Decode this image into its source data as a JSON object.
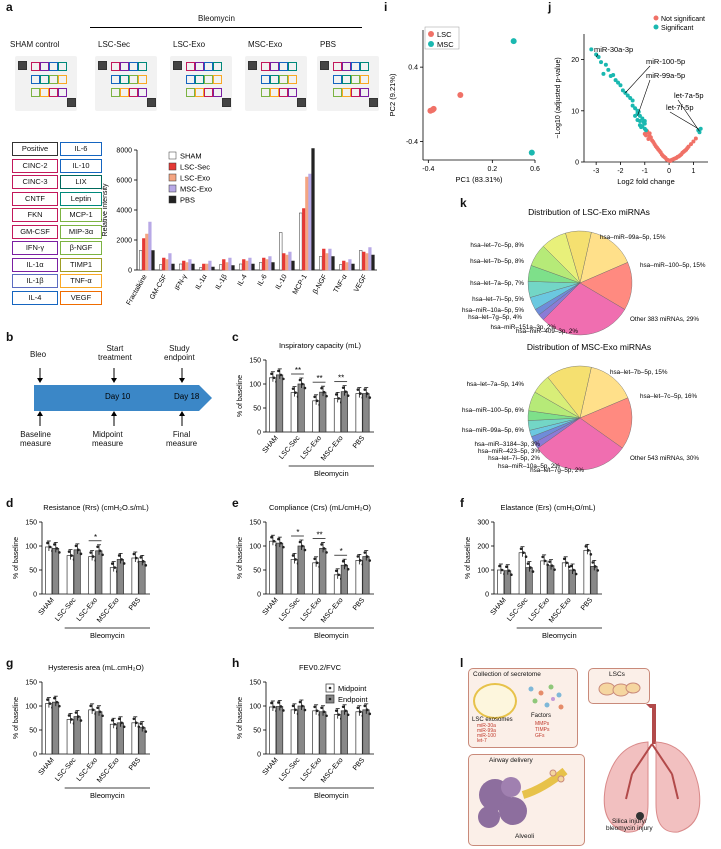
{
  "panel_letters": {
    "a": "a",
    "b": "b",
    "c": "c",
    "d": "d",
    "e": "e",
    "f": "f",
    "g": "g",
    "h": "h",
    "i": "i",
    "j": "j",
    "k": "k",
    "l": "l"
  },
  "panel_a": {
    "bleomycin_label": "Bleomycin",
    "conditions": [
      "SHAM control",
      "LSC-Sec",
      "LSC-Exo",
      "MSC-Exo",
      "PBS"
    ],
    "key_left": [
      "Positive",
      "CINC-2",
      "CINC-3",
      "CNTF",
      "FKN",
      "GM-CSF",
      "IFN-γ",
      "IL-1α",
      "IL-1β",
      "IL-4"
    ],
    "key_right": [
      "IL-6",
      "IL-10",
      "LIX",
      "Leptin",
      "MCP-1",
      "MIP-3α",
      "β-NGF",
      "TIMP1",
      "TNF-α",
      "VEGF"
    ],
    "key_left_colors": [
      "#333333",
      "#c2185b",
      "#c2185b",
      "#c2185b",
      "#c2185b",
      "#c2185b",
      "#7b1fa2",
      "#7b1fa2",
      "#5c6bc0",
      "#1565c0"
    ],
    "key_right_colors": [
      "#1565c0",
      "#1565c0",
      "#00695c",
      "#00897b",
      "#7cb342",
      "#7cb342",
      "#7cb342",
      "#9e9d24",
      "#f9a825",
      "#ef6c00"
    ],
    "chart_data": {
      "type": "bar",
      "ylabel": "Relative intensity",
      "ylim": [
        0,
        8000
      ],
      "yticks": [
        0,
        2000,
        4000,
        6000,
        8000
      ],
      "categories": [
        "Fractalkine",
        "GM-CSF",
        "IFN-γ",
        "IL-1α",
        "IL-1β",
        "IL-4",
        "IL-6",
        "IL-10",
        "MCP-1",
        "β-NGF",
        "TNF-α",
        "VEGF"
      ],
      "series": [
        {
          "name": "SHAM",
          "color": "#ffffff",
          "values": [
            1300,
            350,
            400,
            150,
            350,
            400,
            500,
            2500,
            3800,
            900,
            350,
            1300
          ]
        },
        {
          "name": "LSC-Sec",
          "color": "#e53935",
          "values": [
            2100,
            800,
            600,
            400,
            700,
            700,
            800,
            1100,
            4100,
            1400,
            600,
            1200
          ]
        },
        {
          "name": "LSC-Exo",
          "color": "#f4a582",
          "values": [
            2400,
            700,
            500,
            400,
            500,
            600,
            700,
            1000,
            6200,
            1100,
            500,
            1100
          ]
        },
        {
          "name": "MSC-Exo",
          "color": "#b8a9e6",
          "values": [
            3200,
            1100,
            700,
            600,
            800,
            800,
            900,
            1200,
            6400,
            1400,
            700,
            1500
          ]
        },
        {
          "name": "PBS",
          "color": "#222222",
          "values": [
            1300,
            400,
            400,
            200,
            300,
            400,
            500,
            600,
            8100,
            900,
            400,
            1000
          ]
        }
      ]
    }
  },
  "panel_b": {
    "top_labels": [
      "Bleo",
      "Start\ntreatment",
      "Study\nendpoint"
    ],
    "bottom_labels": [
      "Baseline\nmeasure",
      "Midpoint\nmeasure",
      "Final\nmeasure"
    ],
    "day10": "Day 10",
    "day18": "Day 18",
    "bleomycin_label": "Bleomycin"
  },
  "panel_c": {
    "chart_data": {
      "type": "bar",
      "title": "Inspiratory capacity (mL)",
      "ylabel": "% of baseline",
      "ylim": [
        0,
        150
      ],
      "yticks": [
        0,
        50,
        100,
        150
      ],
      "categories": [
        "SHAM",
        "LSC-Sec",
        "LSC-Exo",
        "MSC-Exo",
        "PBS"
      ],
      "series": [
        {
          "name": "Midpoint",
          "values": [
            113,
            82,
            65,
            70,
            80
          ]
        },
        {
          "name": "Endpoint",
          "values": [
            119,
            100,
            83,
            84,
            80
          ]
        }
      ],
      "significance": [
        "",
        "**",
        "**",
        "**",
        ""
      ],
      "group_label": "Bleomycin"
    }
  },
  "panel_d": {
    "chart_data": {
      "type": "bar",
      "title": "Resistance (Rrs) (cmH₂O.s/mL)",
      "ylabel": "% of baseline",
      "ylim": [
        0,
        150
      ],
      "yticks": [
        0,
        50,
        100,
        150
      ],
      "categories": [
        "SHAM",
        "LSC-Sec",
        "LSC-Exo",
        "MSC-Exo",
        "PBS"
      ],
      "series": [
        {
          "name": "Midpoint",
          "values": [
            98,
            80,
            78,
            55,
            75
          ]
        },
        {
          "name": "Endpoint",
          "values": [
            95,
            92,
            90,
            72,
            68
          ]
        }
      ],
      "significance": [
        "",
        "",
        "*",
        "",
        ""
      ],
      "group_label": "Bleomycin"
    }
  },
  "panel_e": {
    "chart_data": {
      "type": "bar",
      "title": "Compliance (Crs) (mL/cmH₂O)",
      "ylabel": "% of baseline",
      "ylim": [
        0,
        150
      ],
      "yticks": [
        0,
        50,
        100,
        150
      ],
      "categories": [
        "SHAM",
        "LSC-Sec",
        "LSC-Exo",
        "MSC-Exo",
        "PBS"
      ],
      "series": [
        {
          "name": "Midpoint",
          "values": [
            110,
            72,
            65,
            40,
            70
          ]
        },
        {
          "name": "Endpoint",
          "values": [
            106,
            100,
            95,
            60,
            78
          ]
        }
      ],
      "significance": [
        "",
        "*",
        "**",
        "*",
        ""
      ],
      "group_label": "Bleomycin"
    }
  },
  "panel_f": {
    "chart_data": {
      "type": "bar",
      "title": "Elastance (Ers) (cmH₂O/mL)",
      "ylabel": "% of baseline",
      "ylim": [
        0,
        300
      ],
      "yticks": [
        0,
        100,
        200,
        300
      ],
      "categories": [
        "SHAM",
        "LSC-Sec",
        "LSC-Exo",
        "MSC-Exo",
        "PBS"
      ],
      "series": [
        {
          "name": "Midpoint",
          "values": [
            100,
            172,
            138,
            130,
            182
          ]
        },
        {
          "name": "Endpoint",
          "values": [
            97,
            110,
            118,
            100,
            115
          ]
        }
      ],
      "significance": [
        "",
        "",
        "",
        "",
        ""
      ],
      "group_label": "Bleomycin"
    }
  },
  "panel_g": {
    "chart_data": {
      "type": "bar",
      "title": "Hysteresis area (mL.cmH₂O)",
      "ylabel": "% of baseline",
      "ylim": [
        0,
        150
      ],
      "yticks": [
        0,
        50,
        100,
        150
      ],
      "categories": [
        "SHAM",
        "LSC-Sec",
        "LSC-Exo",
        "MSC-Exo",
        "PBS"
      ],
      "series": [
        {
          "name": "Midpoint",
          "values": [
            105,
            72,
            92,
            62,
            65
          ]
        },
        {
          "name": "Endpoint",
          "values": [
            108,
            78,
            88,
            65,
            55
          ]
        }
      ],
      "significance": [
        "",
        "",
        "",
        "",
        ""
      ],
      "group_label": "Bleomycin"
    }
  },
  "panel_h": {
    "chart_data": {
      "type": "bar",
      "title": "FEV0.2/FVC",
      "ylabel": "% of baseline",
      "ylim": [
        0,
        150
      ],
      "yticks": [
        0,
        50,
        100,
        150
      ],
      "categories": [
        "SHAM",
        "LSC-Sec",
        "LSC-Exo",
        "MSC-Exo",
        "PBS"
      ],
      "series": [
        {
          "name": "Midpoint",
          "values": [
            98,
            92,
            90,
            82,
            88
          ]
        },
        {
          "name": "Endpoint",
          "values": [
            99,
            100,
            88,
            90,
            92
          ]
        }
      ],
      "significance": [
        "",
        "",
        "",
        "",
        ""
      ],
      "group_label": "Bleomycin",
      "legend": [
        "Midpoint",
        "Endpoint"
      ]
    }
  },
  "panel_i": {
    "chart_data": {
      "type": "scatter",
      "xlabel": "PC1 (83.31%)",
      "ylabel": "PC2 (9.21%)",
      "xlim": [
        -0.45,
        0.6
      ],
      "ylim": [
        -0.6,
        0.8
      ],
      "xticks": [
        -0.4,
        0.2,
        0.6
      ],
      "yticks": [
        -0.4,
        0.4
      ],
      "series": [
        {
          "name": "LSC",
          "color": "#f07167",
          "points": [
            [
              -0.1,
              0.1
            ],
            [
              -0.35,
              -0.05
            ],
            [
              -0.38,
              -0.07
            ],
            [
              -0.36,
              -0.06
            ]
          ]
        },
        {
          "name": "MSC",
          "color": "#1ab8b0",
          "points": [
            [
              0.4,
              0.68
            ],
            [
              0.57,
              -0.52
            ]
          ]
        }
      ]
    }
  },
  "panel_j": {
    "chart_data": {
      "type": "scatter",
      "xlabel": "Log2 fold change",
      "ylabel": "−Log10 (adjusted p-value)",
      "xlim": [
        -3.5,
        1.6
      ],
      "ylim": [
        0,
        25
      ],
      "xticks": [
        -3,
        -2,
        -1,
        0,
        1
      ],
      "yticks": [
        0,
        10,
        20
      ],
      "legend": [
        "Not significant",
        "Significant"
      ],
      "colors": {
        "Not significant": "#f07167",
        "Significant": "#1ab8b0"
      },
      "annotations": [
        "miR-30a-3p",
        "miR-100-5p",
        "miR-99a-5p",
        "let-7a-5p",
        "let-7f-5p"
      ],
      "significant_points": [
        [
          -3.2,
          22
        ],
        [
          -3.0,
          21
        ],
        [
          -2.9,
          20.5
        ],
        [
          -2.6,
          19
        ],
        [
          -2.5,
          18
        ],
        [
          -2.2,
          16
        ],
        [
          -2.0,
          15
        ],
        [
          -1.9,
          14
        ],
        [
          -1.7,
          13
        ],
        [
          -1.5,
          12
        ],
        [
          -1.4,
          10.5
        ],
        [
          -1.3,
          10
        ],
        [
          -1.2,
          9
        ],
        [
          -1.1,
          8.5
        ],
        [
          -1.0,
          8
        ],
        [
          -1.0,
          7.5
        ],
        [
          -1.2,
          8
        ],
        [
          -1.3,
          9.5
        ],
        [
          -1.1,
          7
        ],
        [
          -1.4,
          9
        ],
        [
          -1.2,
          7.2
        ],
        [
          -1.0,
          6.5
        ],
        [
          -1.15,
          6.8
        ],
        [
          -0.95,
          6.2
        ],
        [
          -1.05,
          7.8
        ],
        [
          -1.3,
          8.2
        ],
        [
          -1.25,
          9.8
        ],
        [
          -1.5,
          11
        ],
        [
          -1.6,
          12.5
        ],
        [
          -1.8,
          13.5
        ],
        [
          1.2,
          6.2
        ],
        [
          1.3,
          6.5
        ],
        [
          1.25,
          5.8
        ],
        [
          -2.1,
          15.5
        ],
        [
          -2.3,
          17
        ],
        [
          -2.4,
          16.8
        ],
        [
          -2.7,
          17.2
        ],
        [
          -2.8,
          19.5
        ]
      ],
      "nonsig_points": [
        [
          -0.9,
          5.8
        ],
        [
          -0.8,
          5
        ],
        [
          -0.7,
          4.2
        ],
        [
          -0.6,
          3.5
        ],
        [
          -0.5,
          2.8
        ],
        [
          -0.4,
          2.2
        ],
        [
          -0.3,
          1.5
        ],
        [
          -0.2,
          1
        ],
        [
          -0.1,
          0.5
        ],
        [
          0,
          0.3
        ],
        [
          0.1,
          0.4
        ],
        [
          0.2,
          0.6
        ],
        [
          0.3,
          0.8
        ],
        [
          0.4,
          1.1
        ],
        [
          0.5,
          1.5
        ],
        [
          0.6,
          2
        ],
        [
          0.7,
          2.4
        ],
        [
          0.8,
          3
        ],
        [
          0.9,
          3.5
        ],
        [
          1.0,
          4
        ],
        [
          1.1,
          4.6
        ],
        [
          -0.85,
          4.5
        ],
        [
          -0.75,
          4.8
        ],
        [
          -0.65,
          3.9
        ],
        [
          -0.55,
          3.1
        ],
        [
          -0.45,
          2.5
        ],
        [
          -0.35,
          1.9
        ],
        [
          -0.25,
          1.2
        ],
        [
          -0.15,
          0.8
        ],
        [
          -0.05,
          0.4
        ],
        [
          0.05,
          0.2
        ],
        [
          0.15,
          0.5
        ],
        [
          0.25,
          0.7
        ],
        [
          0.35,
          1
        ],
        [
          0.45,
          1.3
        ],
        [
          0.55,
          1.8
        ],
        [
          0.65,
          2.2
        ],
        [
          0.75,
          2.7
        ],
        [
          -0.95,
          5.2
        ],
        [
          -0.9,
          6
        ],
        [
          -1.0,
          5.5
        ],
        [
          -0.8,
          5.6
        ]
      ]
    }
  },
  "panel_k": {
    "pie1": {
      "title": "Distribution of LSC-Exo miRNAs",
      "labels": [
        "hsa–miR–99a–5p, 15%",
        "hsa–miR–100–5p, 15%",
        "Other 383 miRNAs, 29%",
        "hsa–miR–409–3p, 2%",
        "hsa–miR–151a–3p, 2%",
        "hsa–let–7g–5p, 4%",
        "hsa–miR–10a–5p, 5%",
        "hsa–let–7i–5p, 5%",
        "hsa–let–7a–5p, 7%",
        "hsa–let–7b–5p, 8%",
        "hsa–let–7c–5p, 8%"
      ],
      "values": [
        15,
        15,
        29,
        2,
        2,
        4,
        5,
        5,
        7,
        8,
        8
      ],
      "colors": [
        "#ffe08a",
        "#ff8a80",
        "#f06eb0",
        "#8a7bd6",
        "#6f8cd9",
        "#6bc8e0",
        "#73d6c6",
        "#7ee08a",
        "#b6ea78",
        "#e8f07a",
        "#f5e070"
      ]
    },
    "pie2": {
      "title": "Distribution of MSC-Exo miRNAs",
      "labels": [
        "hsa–let–7b–5p, 15%",
        "hsa–let–7c–5p, 16%",
        "Other 543 miRNAs, 30%",
        "hsa–let–7g–5p, 2%",
        "hsa–miR–10a–5p, 2%",
        "hsa–let–7i–5p, 2%",
        "hsa–miR–423–5p, 3%",
        "hsa–miR–3184–3p, 3%",
        "hsa–miR–99a–5p, 6%",
        "hsa–miR–100–5p, 6%",
        "hsa–let–7a–5p, 14%"
      ],
      "values": [
        15,
        16,
        30,
        2,
        2,
        2,
        3,
        3,
        6,
        6,
        14
      ],
      "colors": [
        "#ffe08a",
        "#ff8a80",
        "#f06eb0",
        "#8a7bd6",
        "#6f8cd9",
        "#6bc8e0",
        "#73d6c6",
        "#7ee08a",
        "#b6ea78",
        "#d8ee78",
        "#f5e070"
      ]
    }
  },
  "panel_l": {
    "box1_title": "Collection of secretome",
    "lsc_exosomes": "LSC exosomes",
    "mirna_list": [
      "miR-30a",
      "miR-99a",
      "miR-100",
      "let-7"
    ],
    "factors_label": "Factors",
    "factor_list": [
      "MMPs",
      "TIMPs",
      "GFs"
    ],
    "lscs": "LSCs",
    "airway": "Airway delivery",
    "alveoli": "Alveoli",
    "injury": "Silica injury/\nbleomycin injury"
  }
}
